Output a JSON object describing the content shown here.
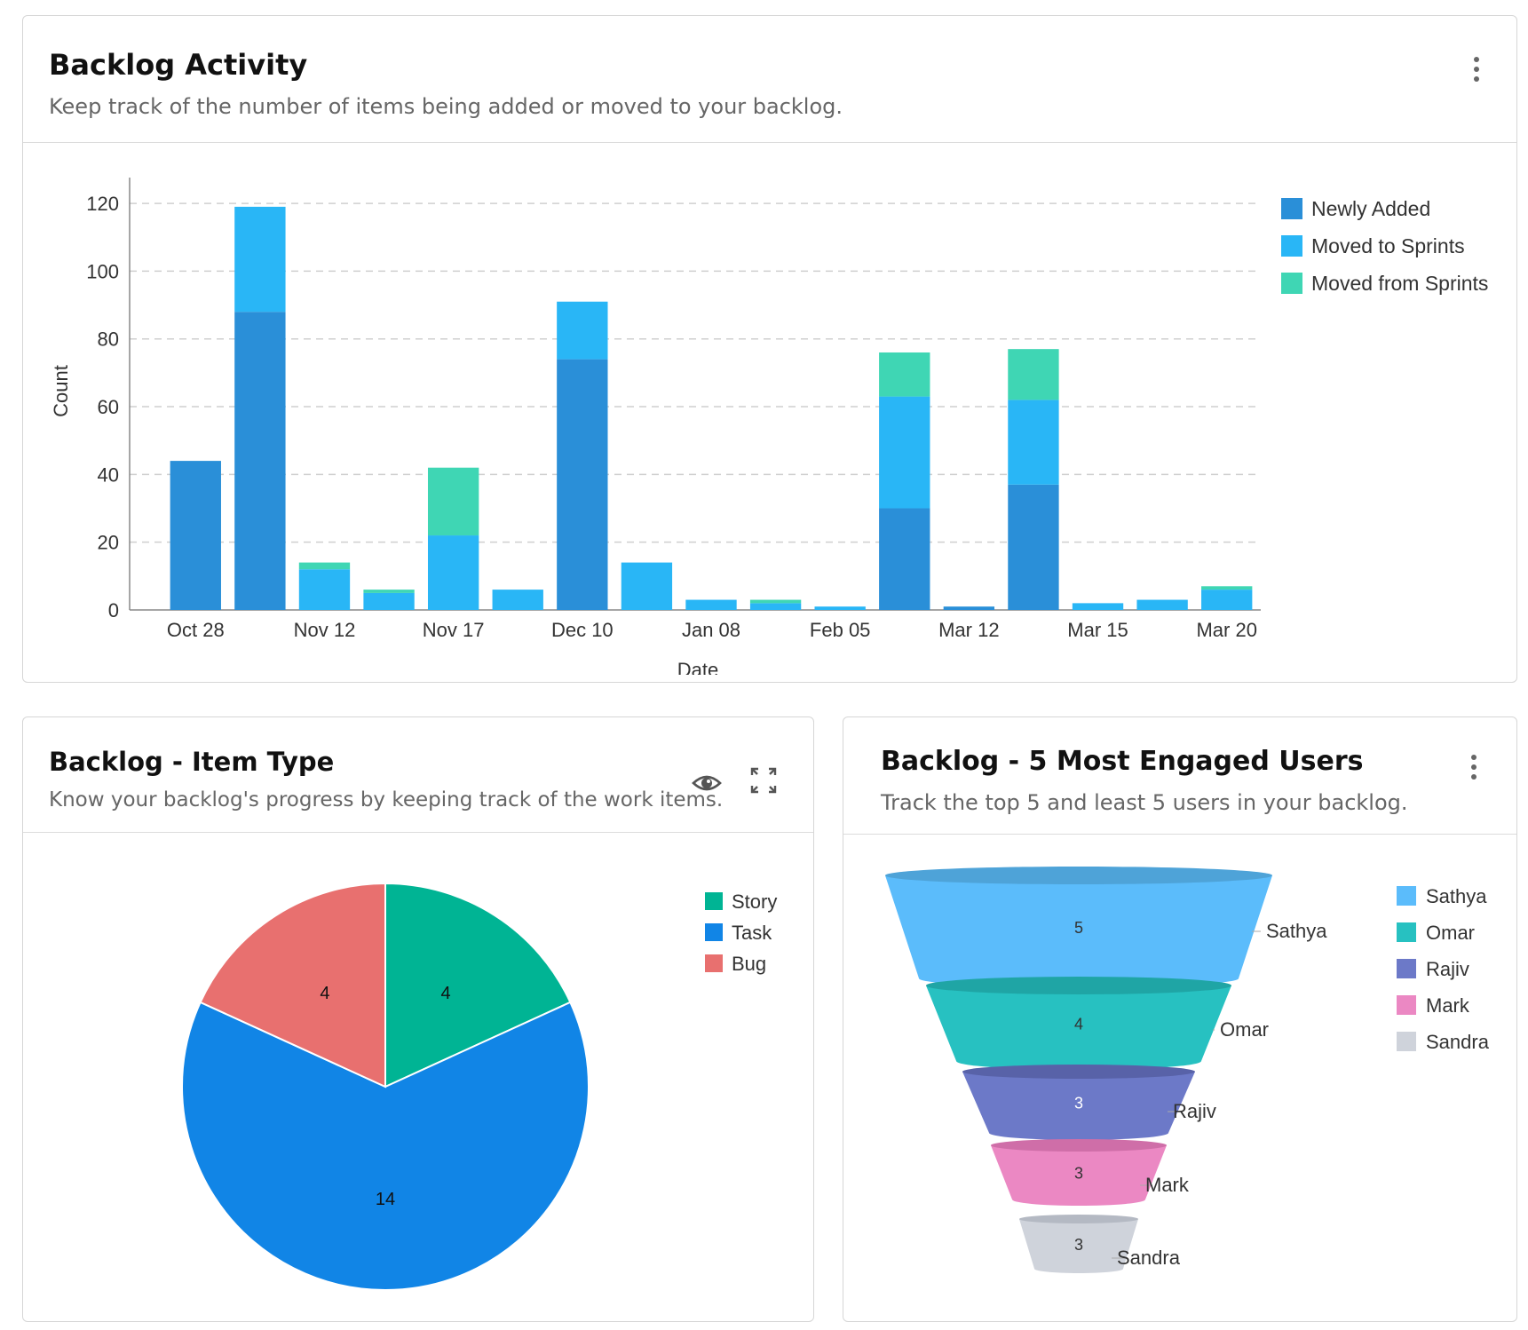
{
  "activity": {
    "title": "Backlog Activity",
    "subtitle": "Keep track of the number of items being added or moved to your backlog."
  },
  "item_type": {
    "title": "Backlog - Item Type",
    "subtitle": "Know your backlog's progress by keeping track of the work items."
  },
  "engaged": {
    "title": "Backlog - 5 Most Engaged Users",
    "subtitle": "Track the top 5 and least 5 users in your backlog."
  },
  "icons": {
    "menu": "kebab-menu-icon",
    "view": "eye-icon",
    "expand": "expand-icon"
  },
  "chart_data": [
    {
      "type": "bar",
      "stacked": true,
      "xlabel": "Date",
      "ylabel": "Count",
      "ylim": [
        0,
        125
      ],
      "yticks": [
        0,
        20,
        40,
        60,
        80,
        100,
        120
      ],
      "grid": true,
      "legend_position": "right",
      "x_tick_labels": [
        "Oct 28",
        "Nov 12",
        "Nov 17",
        "Dec 10",
        "Jan 08",
        "Feb 05",
        "Mar 12",
        "Mar 15",
        "Mar 20"
      ],
      "x_tick_every": 2,
      "categories": [
        "b1",
        "b2",
        "b3",
        "b4",
        "b5",
        "b6",
        "b7",
        "b8",
        "b9",
        "b10",
        "b11",
        "b12",
        "b13",
        "b14",
        "b15",
        "b16",
        "b17"
      ],
      "series": [
        {
          "name": "Newly Added",
          "color": "#2a8fd8",
          "values": [
            44,
            88,
            0,
            0,
            0,
            0,
            74,
            0,
            0,
            0,
            0,
            30,
            1,
            37,
            0,
            0,
            0
          ]
        },
        {
          "name": "Moved to Sprints",
          "color": "#29b6f6",
          "values": [
            0,
            31,
            12,
            5,
            22,
            6,
            17,
            14,
            3,
            2,
            1,
            33,
            0,
            25,
            2,
            3,
            6
          ]
        },
        {
          "name": "Moved from Sprints",
          "color": "#3fd6b4",
          "values": [
            0,
            0,
            2,
            1,
            20,
            0,
            0,
            0,
            0,
            1,
            0,
            13,
            0,
            15,
            0,
            0,
            1
          ]
        }
      ]
    },
    {
      "type": "pie",
      "legend_position": "top-right",
      "slices": [
        {
          "label": "Story",
          "value": 4,
          "color": "#00b494"
        },
        {
          "label": "Task",
          "value": 14,
          "color": "#1185e6"
        },
        {
          "label": "Bug",
          "value": 4,
          "color": "#e8706f"
        }
      ]
    },
    {
      "type": "funnel",
      "legend_position": "top-right",
      "stages": [
        {
          "label": "Sathya",
          "value": 5,
          "color": "#5bbcfb",
          "rim": "#4ea3d8",
          "text_color": "#333"
        },
        {
          "label": "Omar",
          "value": 4,
          "color": "#27c1c1",
          "rim": "#1fa5a5",
          "text_color": "#333"
        },
        {
          "label": "Rajiv",
          "value": 3,
          "color": "#6c79c8",
          "rim": "#5862a8",
          "text_color": "#ffffff"
        },
        {
          "label": "Mark",
          "value": 3,
          "color": "#eb88c3",
          "rim": "#cf6ea8",
          "text_color": "#333"
        },
        {
          "label": "Sandra",
          "value": 3,
          "color": "#cfd3db",
          "rim": "#b4b9c3",
          "text_color": "#333"
        }
      ]
    }
  ]
}
